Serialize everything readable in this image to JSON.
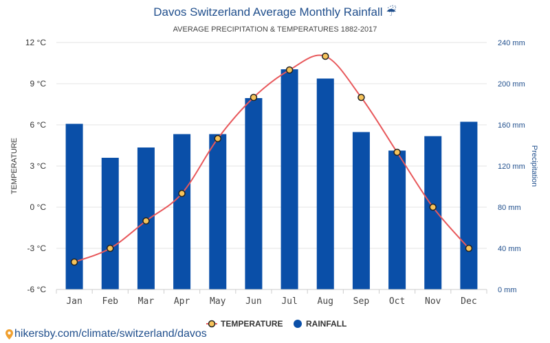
{
  "chart_data": {
    "type": "bar",
    "title": "Davos Switzerland Average Monthly Rainfall",
    "title_icon": "umbrella-rain-icon",
    "title_icon_glyph": "☔",
    "subtitle": "AVERAGE PRECIPITATION & TEMPERATURES 1882-2017",
    "categories": [
      "Jan",
      "Feb",
      "Mar",
      "Apr",
      "May",
      "Jun",
      "Jul",
      "Aug",
      "Sep",
      "Oct",
      "Nov",
      "Dec"
    ],
    "series": [
      {
        "name": "RAINFALL",
        "type": "bar",
        "axis": "right",
        "unit": "mm",
        "color": "#0a4fa8",
        "values": [
          161,
          128,
          138,
          151,
          151,
          186,
          214,
          205,
          153,
          135,
          149,
          163
        ]
      },
      {
        "name": "TEMPERATURE",
        "type": "line",
        "axis": "left",
        "unit": "°C",
        "color": "#e8585b",
        "marker_fill": "#f6c35a",
        "values": [
          -4,
          -3,
          -1,
          1,
          5,
          8,
          10,
          11,
          8,
          4,
          0,
          -3
        ]
      }
    ],
    "y_left": {
      "label": "TEMPERATURE",
      "ylim": [
        -6,
        12
      ],
      "ticks": [
        -6,
        -3,
        0,
        3,
        6,
        9,
        12
      ],
      "tick_labels": [
        "-6 °C",
        "-3 °C",
        "0 °C",
        "3 °C",
        "6 °C",
        "9 °C",
        "12 °C"
      ]
    },
    "y_right": {
      "label": "Precipitation",
      "ylim": [
        0,
        240
      ],
      "ticks": [
        0,
        40,
        80,
        120,
        160,
        200,
        240
      ],
      "tick_labels": [
        "0 mm",
        "40 mm",
        "80 mm",
        "120 mm",
        "160 mm",
        "200 mm",
        "240 mm"
      ]
    },
    "grid": true,
    "legend": {
      "placement": "bottom-center",
      "items": [
        {
          "label": "TEMPERATURE",
          "marker": "line-circle"
        },
        {
          "label": "RAINFALL",
          "marker": "circle"
        }
      ]
    }
  },
  "footer": {
    "text": "hikersby.com/climate/switzerland/davos",
    "icon": "location-pin-icon",
    "icon_color": "#f0a030"
  }
}
